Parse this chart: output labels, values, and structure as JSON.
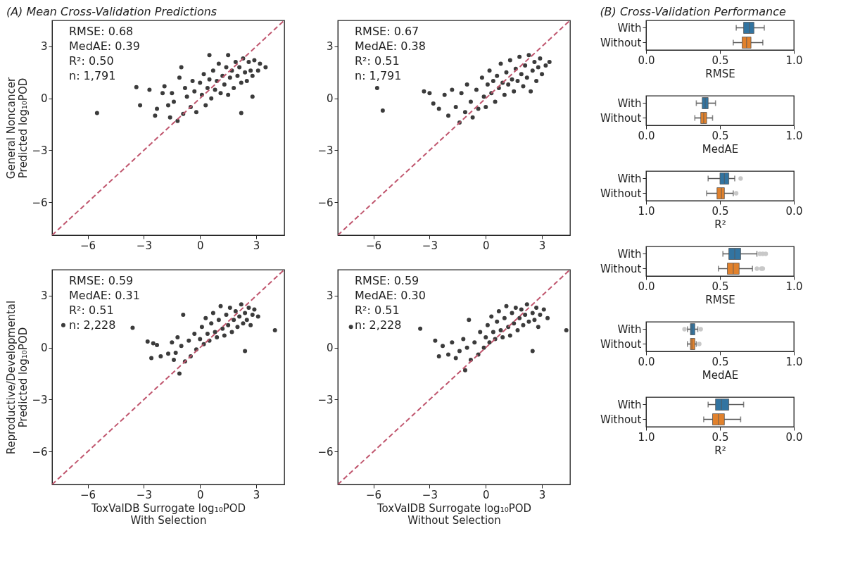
{
  "chart_data": [
    {
      "type": "scatter",
      "title": "(A) Mean Cross-Validation Predictions",
      "ylabel": "General Noncancer\nPredicted log₁₀POD",
      "annotations": [
        "RMSE: 0.68",
        "MedAE: 0.39",
        "R²: 0.50",
        "n: 1,791"
      ],
      "xlim": [
        -7.9,
        4.5
      ],
      "ylim": [
        -7.9,
        4.5
      ],
      "xticks": [
        -6,
        -3,
        0,
        3
      ],
      "yticks": [
        -6,
        -3,
        0,
        3
      ],
      "series": [
        {
          "type": "scatter",
          "color": "#3b3b3b",
          "marker": "circle",
          "x": [
            -5.5,
            -3.4,
            -3.2,
            -2.7,
            -2.4,
            -2.3,
            -2.0,
            -1.9,
            -1.7,
            -1.6,
            -1.5,
            -1.4,
            -1.2,
            -1.1,
            -1.0,
            -0.9,
            -0.8,
            -0.7,
            -0.5,
            -0.4,
            -0.3,
            -0.2,
            0.0,
            0.1,
            0.2,
            0.3,
            0.4,
            0.5,
            0.5,
            0.6,
            0.7,
            0.8,
            0.9,
            1.0,
            1.1,
            1.2,
            1.3,
            1.4,
            1.5,
            1.5,
            1.6,
            1.7,
            1.8,
            1.9,
            2.0,
            2.1,
            2.2,
            2.2,
            2.3,
            2.4,
            2.5,
            2.6,
            2.7,
            2.8,
            2.8,
            2.9,
            3.1,
            3.2,
            3.5
          ],
          "values": [
            -0.85,
            0.65,
            -0.4,
            0.5,
            -1.0,
            -0.6,
            0.3,
            0.7,
            -0.4,
            -1.1,
            0.3,
            -0.2,
            -1.3,
            1.2,
            1.8,
            -0.9,
            0.6,
            0.1,
            -0.5,
            1.0,
            0.4,
            -0.8,
            0.9,
            0.2,
            1.4,
            -0.4,
            0.6,
            1.1,
            2.5,
            0.0,
            1.6,
            0.5,
            1.0,
            2.0,
            0.3,
            1.3,
            0.8,
            1.8,
            2.5,
            0.2,
            1.2,
            1.6,
            0.6,
            2.1,
            1.3,
            1.8,
            -0.85,
            0.9,
            2.3,
            1.5,
            1.0,
            2.1,
            1.6,
            0.1,
            1.3,
            2.2,
            1.6,
            2.0,
            1.8
          ]
        },
        {
          "type": "line",
          "color": "#c0566e",
          "line_style": "dashed",
          "x": [
            -7.9,
            4.5
          ],
          "values": [
            -7.9,
            4.5
          ]
        }
      ]
    },
    {
      "type": "scatter",
      "annotations": [
        "RMSE: 0.67",
        "MedAE: 0.38",
        "R²: 0.51",
        "n: 1,791"
      ],
      "xlim": [
        -7.9,
        4.5
      ],
      "ylim": [
        -7.9,
        4.5
      ],
      "xticks": [
        -6,
        -3,
        0,
        3
      ],
      "yticks": [
        -6,
        -3,
        0,
        3
      ],
      "series": [
        {
          "type": "scatter",
          "color": "#3b3b3b",
          "marker": "circle",
          "x": [
            -5.8,
            -5.5,
            -3.3,
            -3.0,
            -2.8,
            -2.5,
            -2.2,
            -2.0,
            -1.8,
            -1.6,
            -1.4,
            -1.3,
            -1.1,
            -1.0,
            -0.8,
            -0.7,
            -0.5,
            -0.4,
            -0.2,
            -0.1,
            0.0,
            0.1,
            0.2,
            0.3,
            0.4,
            0.5,
            0.6,
            0.7,
            0.8,
            0.9,
            1.0,
            1.1,
            1.2,
            1.3,
            1.4,
            1.5,
            1.6,
            1.7,
            1.8,
            1.9,
            2.0,
            2.1,
            2.2,
            2.3,
            2.4,
            2.5,
            2.6,
            2.7,
            2.8,
            2.9,
            3.0,
            3.2,
            3.4
          ],
          "values": [
            0.6,
            -0.7,
            0.4,
            0.3,
            -0.3,
            -0.6,
            0.2,
            -1.0,
            0.5,
            -0.5,
            -1.4,
            0.3,
            -0.8,
            0.8,
            -0.2,
            -1.1,
            0.5,
            -0.6,
            1.2,
            0.1,
            -0.5,
            0.8,
            1.6,
            0.3,
            1.0,
            -0.2,
            1.3,
            0.6,
            2.0,
            0.9,
            0.2,
            1.5,
            0.8,
            2.2,
            1.1,
            0.4,
            1.7,
            1.0,
            2.4,
            1.4,
            0.7,
            1.9,
            1.2,
            2.5,
            0.4,
            1.6,
            2.1,
            1.0,
            1.8,
            2.3,
            1.4,
            1.9,
            2.1
          ]
        },
        {
          "type": "line",
          "color": "#c0566e",
          "line_style": "dashed",
          "x": [
            -7.9,
            4.5
          ],
          "values": [
            -7.9,
            4.5
          ]
        }
      ]
    },
    {
      "type": "scatter",
      "ylabel": "Reproductive/Developmental\nPredicted log₁₀POD",
      "xlabel": "ToxValDB Surrogate log₁₀POD\nWith Selection",
      "annotations": [
        "RMSE: 0.59",
        "MedAE: 0.31",
        "R²: 0.51",
        "n: 2,228"
      ],
      "xlim": [
        -7.9,
        4.5
      ],
      "ylim": [
        -7.9,
        4.5
      ],
      "xticks": [
        -6,
        -3,
        0,
        3
      ],
      "yticks": [
        -6,
        -3,
        0,
        3
      ],
      "series": [
        {
          "type": "scatter",
          "color": "#3b3b3b",
          "marker": "circle",
          "x": [
            -7.3,
            -3.6,
            -2.8,
            -2.6,
            -2.5,
            -2.3,
            -2.1,
            -1.7,
            -1.5,
            -1.4,
            -1.3,
            -1.2,
            -1.1,
            -1.0,
            -0.9,
            -0.8,
            -0.6,
            -0.5,
            -0.3,
            -0.2,
            0.0,
            0.1,
            0.2,
            0.3,
            0.4,
            0.5,
            0.6,
            0.7,
            0.8,
            0.9,
            1.0,
            1.1,
            1.2,
            1.3,
            1.4,
            1.5,
            1.6,
            1.7,
            1.8,
            1.9,
            2.0,
            2.1,
            2.2,
            2.3,
            2.4,
            2.4,
            2.5,
            2.6,
            2.7,
            2.8,
            2.9,
            3.1,
            4.0
          ],
          "values": [
            1.3,
            1.15,
            0.35,
            -0.6,
            0.25,
            0.15,
            -0.5,
            -0.35,
            0.3,
            -0.7,
            -0.3,
            0.6,
            -1.5,
            0.1,
            1.9,
            -0.8,
            0.4,
            -0.5,
            0.8,
            -0.1,
            0.5,
            1.2,
            0.2,
            1.7,
            0.8,
            0.4,
            1.4,
            2.0,
            0.9,
            0.6,
            1.6,
            2.4,
            1.1,
            0.7,
            1.9,
            1.3,
            2.3,
            0.9,
            1.6,
            2.1,
            1.2,
            1.8,
            2.5,
            1.4,
            -0.2,
            2.0,
            1.6,
            2.3,
            1.3,
            1.9,
            2.2,
            1.8,
            1.0
          ]
        },
        {
          "type": "line",
          "color": "#c0566e",
          "line_style": "dashed",
          "x": [
            -7.9,
            4.5
          ],
          "values": [
            -7.9,
            4.5
          ]
        }
      ]
    },
    {
      "type": "scatter",
      "xlabel": "ToxValDB Surrogate log₁₀POD\nWithout Selection",
      "annotations": [
        "RMSE: 0.59",
        "MedAE: 0.30",
        "R²: 0.51",
        "n: 2,228"
      ],
      "xlim": [
        -7.9,
        4.5
      ],
      "ylim": [
        -7.9,
        4.5
      ],
      "xticks": [
        -6,
        -3,
        0,
        3
      ],
      "yticks": [
        -6,
        -3,
        0,
        3
      ],
      "series": [
        {
          "type": "scatter",
          "color": "#3b3b3b",
          "marker": "circle",
          "x": [
            -7.2,
            -3.5,
            -2.7,
            -2.5,
            -2.3,
            -2.0,
            -1.8,
            -1.6,
            -1.4,
            -1.2,
            -1.1,
            -1.0,
            -0.9,
            -0.8,
            -0.6,
            -0.4,
            -0.3,
            -0.1,
            0.0,
            0.1,
            0.2,
            0.3,
            0.4,
            0.5,
            0.6,
            0.7,
            0.8,
            0.9,
            1.0,
            1.1,
            1.2,
            1.3,
            1.4,
            1.5,
            1.6,
            1.7,
            1.8,
            1.9,
            2.0,
            2.1,
            2.2,
            2.3,
            2.5,
            2.5,
            2.6,
            2.7,
            2.8,
            2.9,
            3.1,
            3.3,
            4.3
          ],
          "values": [
            1.2,
            1.1,
            0.4,
            -0.5,
            0.1,
            -0.4,
            0.3,
            -0.6,
            -0.2,
            0.5,
            -1.3,
            0.0,
            1.6,
            -0.7,
            0.3,
            -0.4,
            0.9,
            0.0,
            0.6,
            1.3,
            0.3,
            1.8,
            0.9,
            0.5,
            1.5,
            2.1,
            1.0,
            0.6,
            1.7,
            2.4,
            1.2,
            0.7,
            2.0,
            1.4,
            2.3,
            1.0,
            1.7,
            2.2,
            1.3,
            1.9,
            2.5,
            1.5,
            -0.2,
            2.0,
            1.6,
            2.3,
            1.2,
            1.9,
            2.2,
            1.7,
            1.0
          ]
        },
        {
          "type": "line",
          "color": "#c0566e",
          "line_style": "dashed",
          "x": [
            -7.9,
            4.5
          ],
          "values": [
            -7.9,
            4.5
          ]
        }
      ]
    },
    {
      "type": "box",
      "title": "(B) Cross-Validation Performance",
      "orientation": "horizontal",
      "xlabel": "RMSE",
      "categories": [
        "With",
        "Without"
      ],
      "colors": [
        "#3274a1",
        "#e1812c"
      ],
      "xlim": [
        0,
        1
      ],
      "xticks": [
        {
          "value": 0,
          "label": "0.0"
        },
        {
          "value": 0.5,
          "label": "0.5"
        },
        {
          "value": 1,
          "label": "1.0"
        }
      ],
      "boxes": [
        {
          "low": 0.61,
          "q1": 0.66,
          "median": 0.7,
          "q3": 0.73,
          "high": 0.8
        },
        {
          "low": 0.59,
          "q1": 0.65,
          "median": 0.68,
          "q3": 0.71,
          "high": 0.79
        }
      ]
    },
    {
      "type": "box",
      "orientation": "horizontal",
      "xlabel": "MedAE",
      "categories": [
        "With",
        "Without"
      ],
      "colors": [
        "#3274a1",
        "#e1812c"
      ],
      "xlim": [
        0,
        1
      ],
      "xticks": [
        {
          "value": 0,
          "label": "0.0"
        },
        {
          "value": 0.5,
          "label": "0.5"
        },
        {
          "value": 1,
          "label": "1.0"
        }
      ],
      "boxes": [
        {
          "low": 0.34,
          "q1": 0.38,
          "median": 0.4,
          "q3": 0.42,
          "high": 0.47
        },
        {
          "low": 0.33,
          "q1": 0.37,
          "median": 0.39,
          "q3": 0.41,
          "high": 0.45
        }
      ]
    },
    {
      "type": "box",
      "orientation": "horizontal",
      "xlabel": "R²",
      "categories": [
        "With",
        "Without"
      ],
      "colors": [
        "#3274a1",
        "#e1812c"
      ],
      "xlim": [
        1,
        0
      ],
      "xticks": [
        {
          "value": 0,
          "label": "0.0"
        },
        {
          "value": 0.5,
          "label": "0.5"
        },
        {
          "value": 1,
          "label": "1.0"
        }
      ],
      "boxes": [
        {
          "low": 0.4,
          "q1": 0.44,
          "median": 0.47,
          "q3": 0.5,
          "high": 0.58,
          "outliers": [
            0.36
          ]
        },
        {
          "low": 0.41,
          "q1": 0.47,
          "median": 0.49,
          "q3": 0.52,
          "high": 0.59,
          "outliers": [
            0.39
          ]
        }
      ]
    },
    {
      "type": "box",
      "orientation": "horizontal",
      "xlabel": "RMSE",
      "categories": [
        "With",
        "Without"
      ],
      "colors": [
        "#3274a1",
        "#e1812c"
      ],
      "xlim": [
        0,
        1
      ],
      "xticks": [
        {
          "value": 0,
          "label": "0.0"
        },
        {
          "value": 0.5,
          "label": "0.5"
        },
        {
          "value": 1,
          "label": "1.0"
        }
      ],
      "boxes": [
        {
          "low": 0.52,
          "q1": 0.56,
          "median": 0.6,
          "q3": 0.64,
          "high": 0.75,
          "outliers": [
            0.77,
            0.79,
            0.81
          ]
        },
        {
          "low": 0.49,
          "q1": 0.55,
          "median": 0.59,
          "q3": 0.63,
          "high": 0.72,
          "outliers": [
            0.75,
            0.78,
            0.79
          ]
        }
      ]
    },
    {
      "type": "box",
      "orientation": "horizontal",
      "xlabel": "MedAE",
      "categories": [
        "With",
        "Without"
      ],
      "colors": [
        "#3274a1",
        "#e1812c"
      ],
      "xlim": [
        0,
        1
      ],
      "xticks": [
        {
          "value": 0,
          "label": "0.0"
        },
        {
          "value": 0.5,
          "label": "0.5"
        },
        {
          "value": 1,
          "label": "1.0"
        }
      ],
      "boxes": [
        {
          "low": 0.28,
          "q1": 0.3,
          "median": 0.31,
          "q3": 0.33,
          "high": 0.35,
          "outliers": [
            0.26,
            0.37
          ]
        },
        {
          "low": 0.28,
          "q1": 0.3,
          "median": 0.31,
          "q3": 0.33,
          "high": 0.34,
          "outliers": [
            0.36
          ]
        }
      ]
    },
    {
      "type": "box",
      "orientation": "horizontal",
      "xlabel": "R²",
      "categories": [
        "With",
        "Without"
      ],
      "colors": [
        "#3274a1",
        "#e1812c"
      ],
      "xlim": [
        1,
        0
      ],
      "xticks": [
        {
          "value": 0,
          "label": "0.0"
        },
        {
          "value": 0.5,
          "label": "0.5"
        },
        {
          "value": 1,
          "label": "1.0"
        }
      ],
      "boxes": [
        {
          "low": 0.34,
          "q1": 0.44,
          "median": 0.49,
          "q3": 0.53,
          "high": 0.58
        },
        {
          "low": 0.36,
          "q1": 0.47,
          "median": 0.51,
          "q3": 0.55,
          "high": 0.61
        }
      ]
    }
  ]
}
